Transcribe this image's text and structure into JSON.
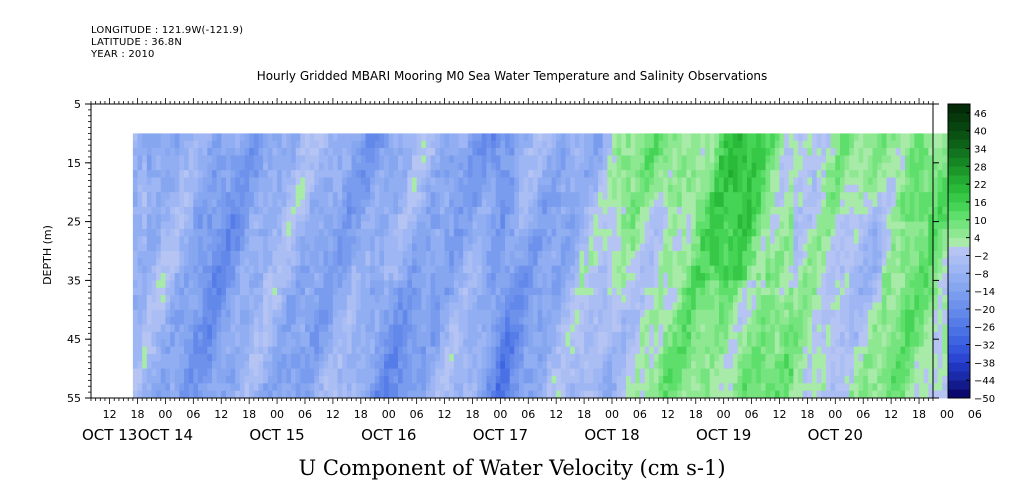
{
  "meta": {
    "longitude": "LONGITUDE : 121.9W(-121.9)",
    "latitude": "LATITUDE : 36.8N",
    "year": "YEAR : 2010"
  },
  "chart_data": {
    "type": "heatmap",
    "title": "Hourly Gridded MBARI Mooring M0 Sea Water Temperature and Salinity Observations",
    "subtitle": "U Component of Water Velocity (cm s-1)",
    "xlabel": "",
    "ylabel": "DEPTH (m)",
    "y_reversed": true,
    "ylim": [
      5,
      55
    ],
    "data_depth_range": [
      10,
      55
    ],
    "y_ticks": [
      "5",
      "15",
      "25",
      "35",
      "45",
      "55"
    ],
    "x_hour_ticks": [
      "12",
      "18",
      "00",
      "06",
      "12",
      "18",
      "00",
      "06",
      "12",
      "18",
      "00",
      "06",
      "12",
      "18",
      "00",
      "06",
      "12",
      "18",
      "00",
      "06",
      "12",
      "18",
      "00",
      "06",
      "12",
      "18",
      "00",
      "06",
      "12",
      "18",
      "00",
      "06"
    ],
    "x_date_labels": [
      "OCT 13",
      "OCT 14",
      "OCT 15",
      "OCT 16",
      "OCT 17",
      "OCT 18",
      "OCT 19",
      "OCT 20"
    ],
    "x_start": "2010-10-13 08:00",
    "data_start": "2010-10-13 17:00",
    "data_end": "2010-10-20 23:00",
    "colorbar": {
      "tick_labels": [
        "46",
        "40",
        "34",
        "28",
        "22",
        "16",
        "10",
        "4",
        "-2",
        "-8",
        "-14",
        "-20",
        "-26",
        "-32",
        "-38",
        "-44",
        "-50"
      ],
      "levels": [
        -50,
        -47,
        -44,
        -41,
        -38,
        -35,
        -32,
        -29,
        -26,
        -23,
        -20,
        -17,
        -14,
        -11,
        -8,
        -5,
        -2,
        1,
        4,
        7,
        10,
        13,
        16,
        19,
        22,
        25,
        28,
        31,
        34,
        37,
        40,
        43,
        46,
        49
      ],
      "colors": [
        "#0a0a6e",
        "#121a8c",
        "#1a2aa8",
        "#2036c0",
        "#2a46d2",
        "#3456dc",
        "#3e64e2",
        "#4a70e6",
        "#567ce8",
        "#6288ea",
        "#6e92ec",
        "#7a9cee",
        "#86a6f0",
        "#92aef2",
        "#9eb6f4",
        "#aabef4",
        "#b6c4f4",
        "#a8eaa8",
        "#8ee892",
        "#76e47e",
        "#5ede6a",
        "#46d456",
        "#36c846",
        "#2aba3a",
        "#22aa32",
        "#1c982a",
        "#168624",
        "#12741e",
        "#0e6218",
        "#0a5214",
        "#084410",
        "#06380c",
        "#042c08"
      ]
    },
    "grid": false,
    "legend": "colorbar-right"
  }
}
